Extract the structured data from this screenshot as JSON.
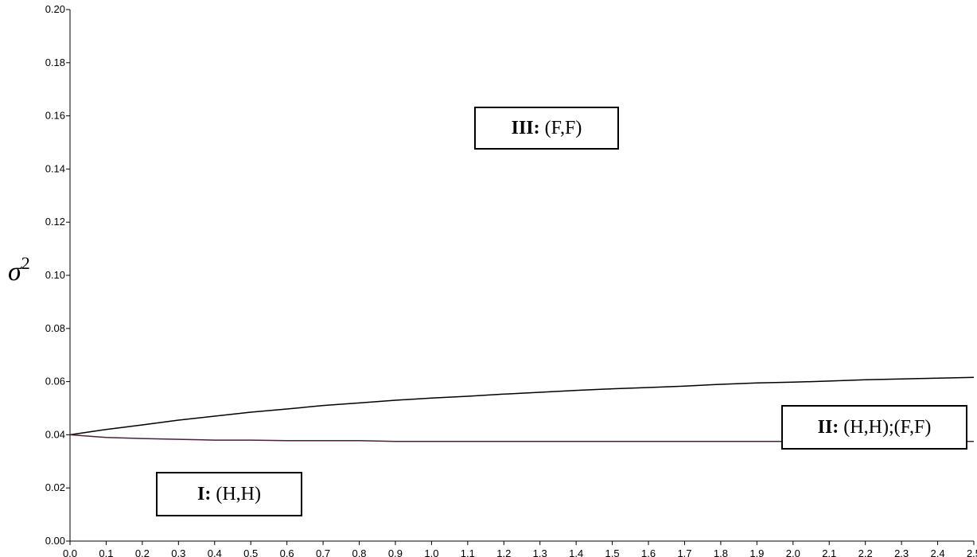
{
  "chart_data": {
    "type": "line",
    "title": "",
    "xlabel": "",
    "ylabel": "σ",
    "ylabel_superscript": "2",
    "xlim": [
      0.0,
      2.5
    ],
    "ylim": [
      0.0,
      0.2
    ],
    "x_ticks": [
      "0.0",
      "0.1",
      "0.2",
      "0.3",
      "0.4",
      "0.5",
      "0.6",
      "0.7",
      "0.8",
      "0.9",
      "1.0",
      "1.1",
      "1.2",
      "1.3",
      "1.4",
      "1.5",
      "1.6",
      "1.7",
      "1.8",
      "1.9",
      "2.0",
      "2.1",
      "2.2",
      "2.3",
      "2.4",
      "2.5"
    ],
    "y_ticks": [
      "0.00",
      "0.02",
      "0.04",
      "0.06",
      "0.08",
      "0.10",
      "0.12",
      "0.14",
      "0.16",
      "0.18",
      "0.20"
    ],
    "x": [
      0.0,
      0.1,
      0.2,
      0.3,
      0.4,
      0.5,
      0.6,
      0.7,
      0.8,
      0.9,
      1.0,
      1.1,
      1.2,
      1.3,
      1.4,
      1.5,
      1.6,
      1.7,
      1.8,
      1.9,
      2.0,
      2.1,
      2.2,
      2.3,
      2.4,
      2.5
    ],
    "series": [
      {
        "color": "#000000",
        "values": [
          0.04,
          0.042,
          0.0437,
          0.0455,
          0.047,
          0.0485,
          0.0497,
          0.051,
          0.052,
          0.053,
          0.0538,
          0.0545,
          0.0553,
          0.056,
          0.0567,
          0.0573,
          0.0578,
          0.0583,
          0.059,
          0.0595,
          0.0598,
          0.0602,
          0.0607,
          0.061,
          0.0613,
          0.0616
        ]
      },
      {
        "color": "#4a1f3f",
        "values": [
          0.04,
          0.039,
          0.0386,
          0.0383,
          0.038,
          0.038,
          0.0378,
          0.0378,
          0.0378,
          0.0375,
          0.0375,
          0.0375,
          0.0375,
          0.0375,
          0.0375,
          0.0375,
          0.0375,
          0.0375,
          0.0375,
          0.0375,
          0.0375,
          0.0375,
          0.0375,
          0.0375,
          0.0375,
          0.0375
        ]
      }
    ],
    "grid": false,
    "annotations": [
      {
        "bold": "III:",
        "text": "(F,F)"
      },
      {
        "bold": "II:",
        "text": "(H,H);(F,F)"
      },
      {
        "bold": "I:",
        "text": "(H,H)"
      }
    ]
  }
}
